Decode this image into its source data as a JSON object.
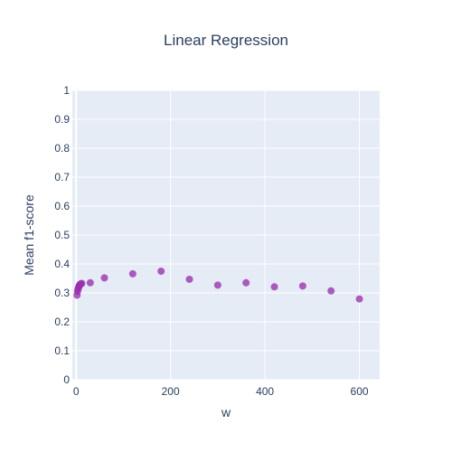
{
  "chart_data": {
    "type": "scatter",
    "title": "Linear Regression",
    "xlabel": "w",
    "ylabel": "Mean f1-score",
    "xlim": [
      -8,
      643
    ],
    "ylim": [
      0,
      1
    ],
    "xticks": [
      "0",
      "200",
      "400",
      "600"
    ],
    "xtick_values": [
      0,
      200,
      400,
      600
    ],
    "yticks": [
      "0",
      "0.1",
      "0.2",
      "0.3",
      "0.4",
      "0.5",
      "0.6",
      "0.7",
      "0.8",
      "0.9",
      "1"
    ],
    "ytick_values": [
      0,
      0.1,
      0.2,
      0.3,
      0.4,
      0.5,
      0.6,
      0.7,
      0.8,
      0.9,
      1
    ],
    "grid": true,
    "plot_background": "#e5ecf6",
    "marker_color": "#9b30b0",
    "series": [
      {
        "x": [
          2,
          3,
          4,
          5,
          6,
          7,
          8,
          9,
          10,
          12,
          30,
          60,
          120,
          180,
          240,
          300,
          360,
          420,
          480,
          540,
          600
        ],
        "y": [
          0.292,
          0.305,
          0.312,
          0.318,
          0.322,
          0.326,
          0.328,
          0.33,
          0.331,
          0.333,
          0.335,
          0.352,
          0.366,
          0.375,
          0.347,
          0.327,
          0.335,
          0.321,
          0.324,
          0.307,
          0.279
        ]
      }
    ]
  }
}
